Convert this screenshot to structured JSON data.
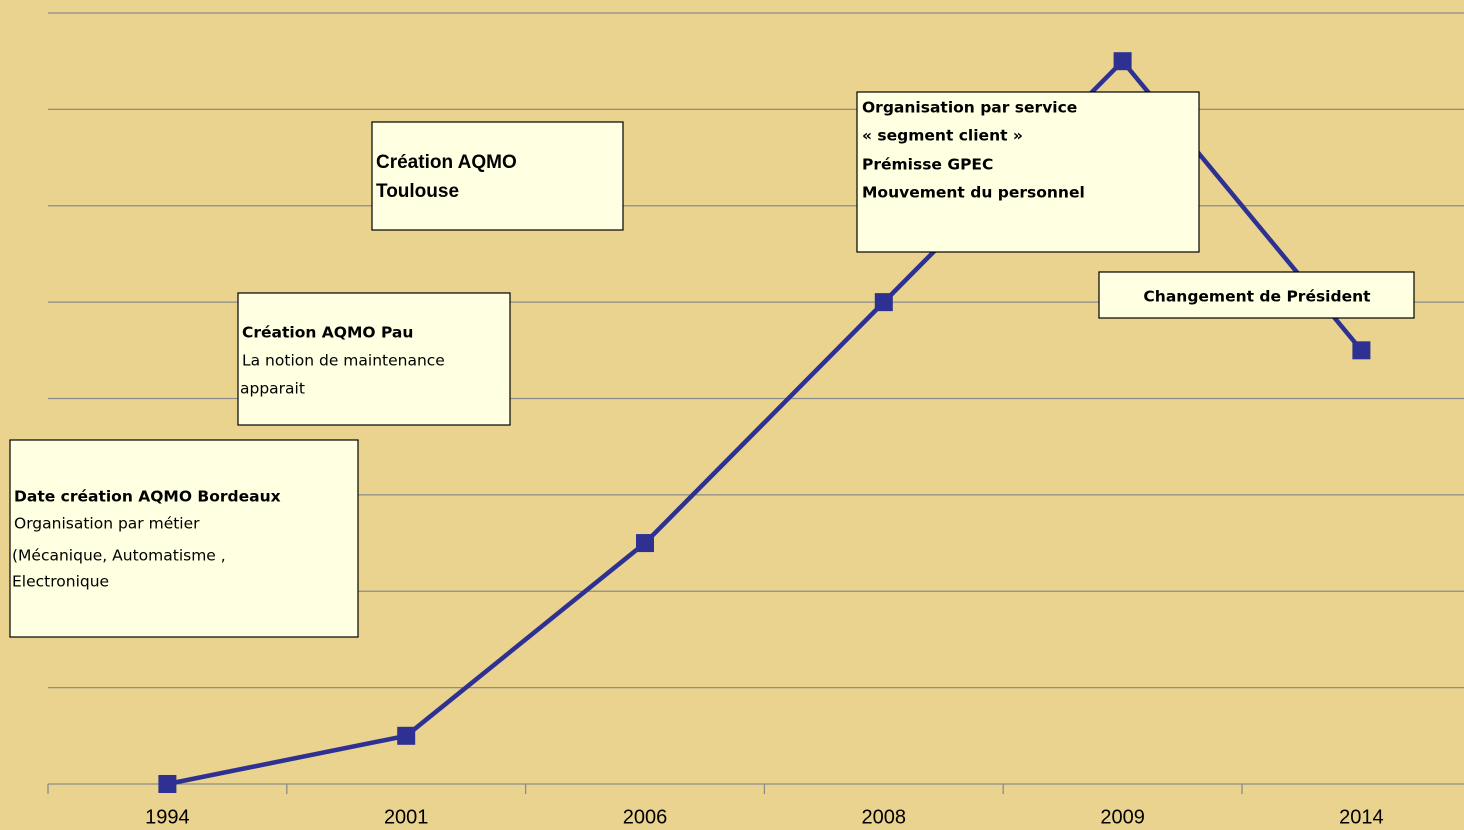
{
  "chart_data": {
    "type": "line",
    "categories": [
      "1994",
      "2001",
      "2006",
      "2008",
      "2009",
      "2014"
    ],
    "values": [
      0,
      0.5,
      2.5,
      5,
      7.5,
      4.5
    ],
    "color": "#2e3192",
    "ylim": [
      0,
      8
    ],
    "yticks": [
      0,
      1,
      2,
      3,
      4,
      5,
      6,
      7,
      8
    ],
    "grid": true,
    "annotations": [
      {
        "lines": [
          "Date création AQMO Bordeaux",
          "Organisation par métier",
          "(Mécanique, Automatisme ,",
          "Electronique"
        ]
      },
      {
        "lines": [
          "Création AQMO  Pau",
          "La notion de maintenance",
          "apparait"
        ]
      },
      {
        "lines": [
          "Création AQMO",
          "Toulouse"
        ]
      },
      {
        "lines": [
          "Organisation par service",
          "« segment client »",
          "Prémisse GPEC",
          "Mouvement du personnel"
        ]
      },
      {
        "lines": [
          "Changement de Président"
        ]
      }
    ]
  }
}
